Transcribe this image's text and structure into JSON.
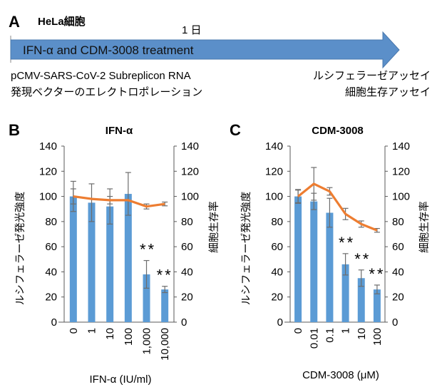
{
  "panel_a": {
    "label": "A",
    "cell_line": "HeLa細胞",
    "duration": "1 日",
    "treatment": "IFN-α and CDM-3008 treatment",
    "left_lines": [
      "pCMV-SARS-CoV-2 Subreplicon RNA",
      "発現ベクターのエレクトロポレーション"
    ],
    "right_lines": [
      "ルシフェラーゼアッセイ",
      "細胞生存アッセイ"
    ],
    "arrow_color": "#5b8fc9"
  },
  "chart_data": [
    {
      "panel_label": "B",
      "type": "bar+line",
      "title": "IFN-α",
      "xlabel": "IFN-α (IU/ml)",
      "ylabel_left": "ルシフェラーゼ発光強度",
      "ylabel_right": "細胞生存率",
      "ylim": [
        0,
        140
      ],
      "yticks": [
        "0",
        "20",
        "40",
        "60",
        "80",
        "100",
        "120",
        "140"
      ],
      "categories": [
        "0",
        "1",
        "10",
        "100",
        "1,000",
        "10,000"
      ],
      "bars": {
        "values": [
          100,
          95,
          92,
          102,
          38,
          26
        ],
        "err": [
          12,
          15,
          14,
          17,
          11,
          2.5
        ],
        "color": "#5b9bd5"
      },
      "line": {
        "values": [
          100,
          98,
          97,
          97,
          92,
          94
        ],
        "err": [
          6,
          0,
          3,
          0,
          2,
          1.5
        ],
        "color": "#ed7d31"
      },
      "significance": [
        "",
        "",
        "",
        "",
        "**",
        "**"
      ]
    },
    {
      "panel_label": "C",
      "type": "bar+line",
      "title": "CDM-3008",
      "xlabel": "CDM-3008 (μM)",
      "ylabel_left": "ルシフェラーゼ発光強度",
      "ylabel_right": "細胞生存率",
      "ylim": [
        0,
        140
      ],
      "yticks": [
        "0",
        "20",
        "40",
        "60",
        "80",
        "100",
        "120",
        "140"
      ],
      "categories": [
        "0",
        "0.01",
        "0.1",
        "1",
        "10",
        "100"
      ],
      "bars": {
        "values": [
          100,
          96,
          87,
          46,
          35,
          26
        ],
        "err": [
          5.5,
          6.5,
          11.5,
          8.5,
          6.5,
          3.5
        ],
        "color": "#5b9bd5"
      },
      "line": {
        "values": [
          100,
          110,
          104,
          86,
          78,
          73
        ],
        "err": [
          5,
          13,
          3,
          4.5,
          2.5,
          1.5
        ],
        "color": "#ed7d31"
      },
      "significance": [
        "",
        "",
        "",
        "**",
        "**",
        "**"
      ]
    }
  ]
}
